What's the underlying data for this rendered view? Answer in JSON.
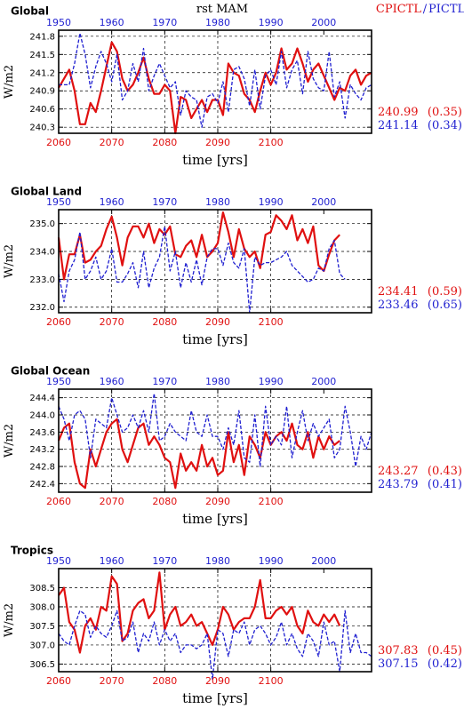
{
  "header": {
    "center": "rst MAM",
    "right_red": "CPICTL",
    "right_sep": "/",
    "right_blue": "PICTL"
  },
  "colors": {
    "red": "#e01010",
    "blue": "#1f1fd0",
    "frame": "#000000",
    "grid": "#000000"
  },
  "chart_data": [
    {
      "type": "line",
      "title": "Global",
      "ylabel": "W/m2",
      "xlabel": "time [yrs]",
      "ylim": [
        240.2,
        241.9
      ],
      "yticks": [
        "241.8",
        "241.5",
        "241.2",
        "240.9",
        "240.6",
        "240.3"
      ],
      "yticks_values": [
        241.8,
        241.5,
        241.2,
        240.9,
        240.6,
        240.3
      ],
      "x_bottom": {
        "range": [
          2060,
          2119
        ],
        "ticks": [
          "2060",
          "2070",
          "2080",
          "2090",
          "2100"
        ],
        "tick_values": [
          2060,
          2070,
          2080,
          2090,
          2100
        ]
      },
      "x_top": {
        "range": [
          1950,
          2009
        ],
        "ticks": [
          "1950",
          "1960",
          "1970",
          "1980",
          "1990",
          "2000"
        ],
        "tick_values": [
          1950,
          1960,
          1970,
          1980,
          1990,
          2000
        ]
      },
      "series": [
        {
          "color": "red",
          "axis": "bottom",
          "x_start": 2060,
          "values": [
            240.95,
            241.1,
            241.25,
            240.9,
            240.35,
            240.35,
            240.7,
            240.55,
            240.9,
            241.3,
            241.7,
            241.55,
            241.1,
            240.9,
            241.0,
            241.2,
            241.45,
            241.1,
            240.85,
            240.85,
            241.0,
            240.9,
            240.2,
            240.8,
            240.75,
            240.45,
            240.6,
            240.75,
            240.55,
            240.75,
            240.75,
            240.5,
            241.35,
            241.2,
            241.15,
            240.85,
            240.75,
            240.55,
            240.9,
            241.2,
            241.0,
            241.2,
            241.6,
            241.25,
            241.35,
            241.6,
            241.35,
            241.05,
            241.25,
            241.35,
            241.15,
            240.95,
            240.75,
            240.95,
            240.9,
            241.15,
            241.25,
            241.0,
            241.15,
            241.2
          ]
        },
        {
          "color": "blue",
          "axis": "top",
          "x_start": 1950,
          "values": [
            241.0,
            241.0,
            241.0,
            241.35,
            241.85,
            241.5,
            240.95,
            241.3,
            241.55,
            241.35,
            241.05,
            241.5,
            240.75,
            240.9,
            241.35,
            241.05,
            241.6,
            240.9,
            241.15,
            241.35,
            241.15,
            240.95,
            241.05,
            240.5,
            240.9,
            240.8,
            240.75,
            240.3,
            240.8,
            240.85,
            240.7,
            241.05,
            240.55,
            241.25,
            241.3,
            241.1,
            240.65,
            241.25,
            240.6,
            241.15,
            241.25,
            241.0,
            241.55,
            240.95,
            241.25,
            241.4,
            240.85,
            241.55,
            241.1,
            240.95,
            240.9,
            241.55,
            240.8,
            241.05,
            240.45,
            241.0,
            240.85,
            240.75,
            240.95,
            241.0
          ]
        }
      ],
      "stats": [
        {
          "color": "red",
          "mean": "240.99",
          "sd": "(0.35)"
        },
        {
          "color": "blue",
          "mean": "241.14",
          "sd": "(0.34)"
        }
      ]
    },
    {
      "type": "line",
      "title": "Global Land",
      "ylabel": "W/m2",
      "xlabel": "time [yrs]",
      "ylim": [
        231.8,
        235.5
      ],
      "yticks": [
        "235.0",
        "234.0",
        "233.0",
        "232.0"
      ],
      "yticks_values": [
        235.0,
        234.0,
        233.0,
        232.0
      ],
      "x_bottom": {
        "range": [
          2060,
          2119
        ],
        "ticks": [
          "2060",
          "2070",
          "2080",
          "2090",
          "2100"
        ],
        "tick_values": [
          2060,
          2070,
          2080,
          2090,
          2100
        ]
      },
      "x_top": {
        "range": [
          1950,
          2009
        ],
        "ticks": [
          "1950",
          "1960",
          "1970",
          "1980",
          "1990",
          "2000"
        ],
        "tick_values": [
          1950,
          1960,
          1970,
          1980,
          1990,
          2000
        ]
      },
      "series": [
        {
          "color": "red",
          "axis": "bottom",
          "x_start": 2060,
          "values": [
            234.5,
            233.0,
            233.9,
            233.9,
            234.6,
            233.6,
            233.7,
            234.0,
            234.2,
            234.8,
            235.25,
            234.5,
            233.5,
            234.5,
            234.9,
            234.9,
            234.5,
            235.0,
            234.3,
            234.8,
            234.6,
            234.9,
            233.9,
            233.8,
            234.2,
            234.4,
            233.8,
            234.6,
            233.8,
            234.0,
            234.3,
            235.4,
            234.7,
            233.8,
            234.8,
            234.1,
            233.8,
            234.0,
            233.4,
            234.6,
            234.7,
            235.3,
            235.1,
            234.8,
            235.3,
            234.4,
            234.8,
            234.3,
            234.9,
            233.5,
            233.3,
            233.9,
            234.4,
            234.6
          ]
        },
        {
          "color": "blue",
          "axis": "top",
          "x_start": 1950,
          "values": [
            233.2,
            232.2,
            233.3,
            233.7,
            234.7,
            233.0,
            233.3,
            233.8,
            233.0,
            233.3,
            234.1,
            232.9,
            232.9,
            233.2,
            233.6,
            232.7,
            234.0,
            232.7,
            233.4,
            233.8,
            234.9,
            233.3,
            234.0,
            232.7,
            233.6,
            232.9,
            233.7,
            232.8,
            233.8,
            234.1,
            234.1,
            233.5,
            234.3,
            233.6,
            233.4,
            234.1,
            231.8,
            233.8,
            233.5,
            233.6,
            233.6,
            233.7,
            233.8,
            234.0,
            233.5,
            233.3,
            233.1,
            232.9,
            233.0,
            233.4,
            233.3,
            234.1,
            234.4,
            233.2,
            233.0
          ]
        }
      ],
      "stats": [
        {
          "color": "red",
          "mean": "234.41",
          "sd": "(0.59)"
        },
        {
          "color": "blue",
          "mean": "233.46",
          "sd": "(0.65)"
        }
      ]
    },
    {
      "type": "line",
      "title": "Global Ocean",
      "ylabel": "W/m2",
      "xlabel": "time [yrs]",
      "ylim": [
        242.2,
        244.6
      ],
      "yticks": [
        "244.4",
        "244.0",
        "243.6",
        "243.2",
        "242.8",
        "242.4"
      ],
      "yticks_values": [
        244.4,
        244.0,
        243.6,
        243.2,
        242.8,
        242.4
      ],
      "x_bottom": {
        "range": [
          2060,
          2119
        ],
        "ticks": [
          "2060",
          "2070",
          "2080",
          "2090",
          "2100"
        ],
        "tick_values": [
          2060,
          2070,
          2080,
          2090,
          2100
        ]
      },
      "x_top": {
        "range": [
          1950,
          2009
        ],
        "ticks": [
          "1950",
          "1960",
          "1970",
          "1980",
          "1990",
          "2000"
        ],
        "tick_values": [
          1950,
          1960,
          1970,
          1980,
          1990,
          2000
        ]
      },
      "series": [
        {
          "color": "red",
          "axis": "bottom",
          "x_start": 2060,
          "values": [
            243.4,
            243.7,
            243.8,
            242.9,
            242.4,
            242.3,
            243.2,
            242.8,
            243.2,
            243.6,
            243.8,
            243.9,
            243.2,
            242.9,
            243.3,
            243.7,
            243.8,
            243.3,
            243.5,
            243.3,
            243.0,
            242.9,
            242.3,
            243.1,
            242.7,
            242.9,
            242.7,
            243.3,
            242.8,
            243.0,
            242.6,
            242.7,
            243.6,
            242.9,
            243.3,
            242.6,
            243.5,
            243.3,
            243.0,
            243.6,
            243.3,
            243.5,
            243.6,
            243.4,
            243.8,
            243.3,
            243.2,
            243.6,
            243.0,
            243.5,
            243.2,
            243.5,
            243.3,
            243.4
          ]
        },
        {
          "color": "blue",
          "axis": "top",
          "x_start": 1950,
          "values": [
            244.2,
            243.9,
            243.4,
            244.0,
            244.1,
            243.9,
            243.0,
            243.9,
            243.8,
            243.7,
            244.4,
            244.0,
            243.6,
            243.7,
            244.0,
            243.7,
            244.1,
            243.6,
            244.5,
            243.4,
            243.5,
            243.8,
            243.6,
            243.5,
            243.4,
            244.1,
            243.6,
            243.5,
            244.0,
            243.5,
            243.5,
            243.2,
            243.7,
            243.3,
            244.1,
            243.0,
            242.9,
            244.0,
            242.8,
            244.2,
            243.3,
            243.5,
            243.3,
            244.2,
            243.0,
            243.6,
            244.1,
            243.4,
            243.8,
            243.5,
            243.7,
            243.9,
            243.0,
            243.2,
            244.2,
            243.6,
            242.8,
            243.5,
            243.2,
            243.6
          ]
        }
      ],
      "stats": [
        {
          "color": "red",
          "mean": "243.27",
          "sd": "(0.43)"
        },
        {
          "color": "blue",
          "mean": "243.79",
          "sd": "(0.41)"
        }
      ]
    },
    {
      "type": "line",
      "title": "Tropics",
      "ylabel": "W/m2",
      "xlabel": "time [yrs]",
      "ylim": [
        306.3,
        309.0
      ],
      "yticks": [
        "308.5",
        "308.0",
        "307.5",
        "307.0",
        "306.5"
      ],
      "yticks_values": [
        308.5,
        308.0,
        307.5,
        307.0,
        306.5
      ],
      "x_bottom": {
        "range": [
          2060,
          2119
        ],
        "ticks": [
          "2060",
          "2070",
          "2080",
          "2090",
          "2100"
        ],
        "tick_values": [
          2060,
          2070,
          2080,
          2090,
          2100
        ]
      },
      "x_top": {
        "range": [
          1950,
          2009
        ],
        "ticks": [
          "1950",
          "1960",
          "1970",
          "1980",
          "1990",
          "2000"
        ],
        "tick_values": [
          1950,
          1960,
          1970,
          1980,
          1990,
          2000
        ]
      },
      "series": [
        {
          "color": "red",
          "axis": "bottom",
          "x_start": 2060,
          "values": [
            308.3,
            308.5,
            307.6,
            307.4,
            306.8,
            307.5,
            307.7,
            307.4,
            308.0,
            307.9,
            308.8,
            308.6,
            307.1,
            307.3,
            307.9,
            308.1,
            308.2,
            307.7,
            307.9,
            308.9,
            307.4,
            307.8,
            308.0,
            307.5,
            307.6,
            307.8,
            307.5,
            307.6,
            307.3,
            307.0,
            307.4,
            308.0,
            307.8,
            307.4,
            307.6,
            307.7,
            307.7,
            308.0,
            308.7,
            307.7,
            307.7,
            307.9,
            308.0,
            307.8,
            308.0,
            307.5,
            307.3,
            307.9,
            307.6,
            307.5,
            307.8,
            307.6,
            307.8,
            307.5
          ]
        },
        {
          "color": "blue",
          "axis": "top",
          "x_start": 1950,
          "values": [
            307.3,
            307.1,
            307.0,
            307.5,
            307.9,
            307.8,
            307.2,
            307.5,
            307.3,
            307.2,
            307.5,
            307.9,
            307.1,
            307.2,
            307.6,
            306.8,
            307.3,
            307.1,
            307.6,
            307.0,
            307.4,
            307.1,
            307.3,
            306.8,
            307.0,
            307.0,
            306.9,
            307.0,
            307.3,
            306.1,
            307.4,
            307.3,
            306.7,
            307.4,
            307.3,
            307.6,
            307.0,
            307.4,
            307.5,
            307.3,
            307.0,
            307.2,
            307.6,
            307.0,
            307.3,
            306.9,
            306.7,
            307.3,
            307.1,
            306.7,
            307.6,
            307.0,
            307.1,
            306.3,
            307.9,
            306.8,
            307.3,
            306.8,
            306.8,
            306.7
          ]
        }
      ],
      "stats": [
        {
          "color": "red",
          "mean": "307.83",
          "sd": "(0.45)"
        },
        {
          "color": "blue",
          "mean": "307.15",
          "sd": "(0.42)"
        }
      ]
    }
  ]
}
